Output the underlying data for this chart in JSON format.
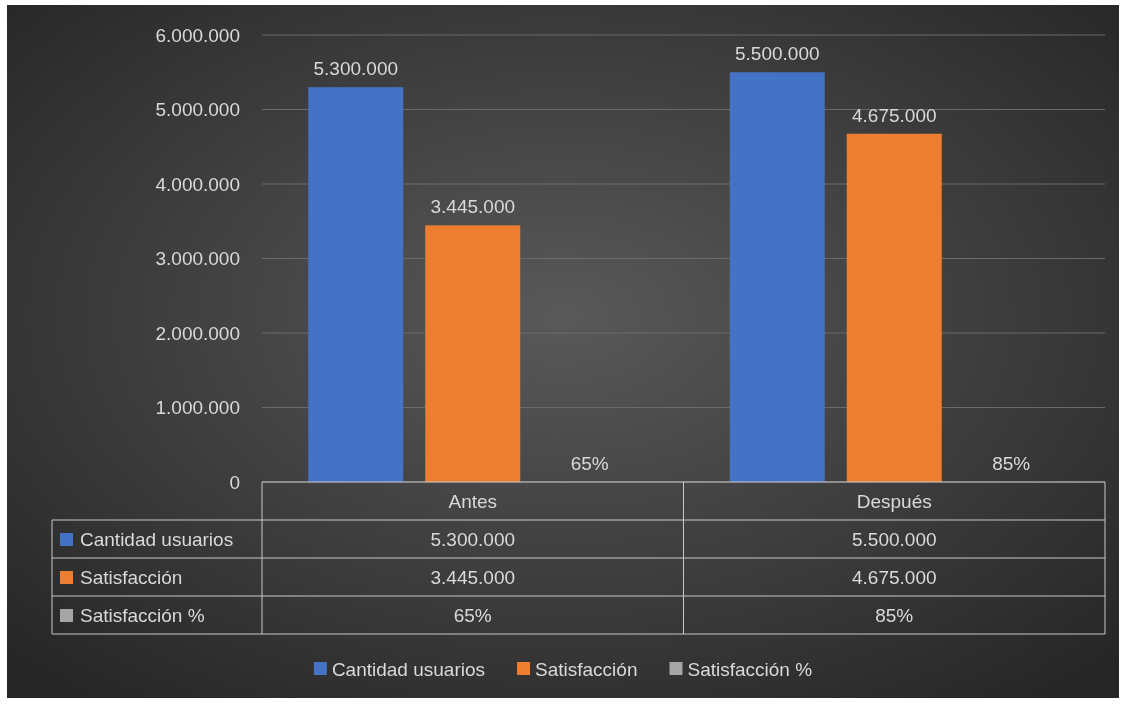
{
  "chart_data": {
    "type": "bar",
    "categories": [
      "Antes",
      "Después"
    ],
    "series": [
      {
        "name": "Cantidad usuarios",
        "color": "#4472c4",
        "values": [
          5300000,
          5500000
        ],
        "value_labels": [
          "5.300.000",
          "5.500.000"
        ]
      },
      {
        "name": "Satisfacción",
        "color": "#ed7d31",
        "values": [
          3445000,
          4675000
        ],
        "value_labels": [
          "3.445.000",
          "4.675.000"
        ]
      },
      {
        "name": "Satisfacción %",
        "color": "#a5a5a5",
        "values": [
          0.65,
          0.85
        ],
        "value_labels": [
          "65%",
          "85%"
        ]
      }
    ],
    "ylim": [
      0,
      6000000
    ],
    "yticks": [
      {
        "value": 0,
        "label": "0"
      },
      {
        "value": 1000000,
        "label": "1.000.000"
      },
      {
        "value": 2000000,
        "label": "2.000.000"
      },
      {
        "value": 3000000,
        "label": "3.000.000"
      },
      {
        "value": 4000000,
        "label": "4.000.000"
      },
      {
        "value": 5000000,
        "label": "5.000.000"
      },
      {
        "value": 6000000,
        "label": "6.000.000"
      }
    ],
    "grid": "y",
    "legend": "bottom"
  }
}
